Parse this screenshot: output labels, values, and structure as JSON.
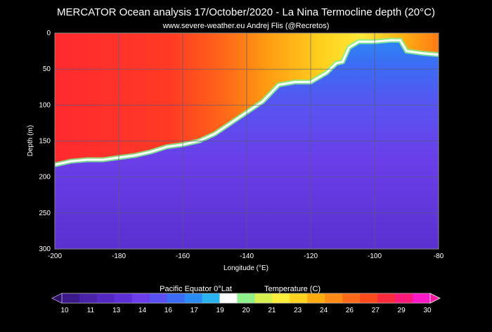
{
  "chart_data": {
    "type": "heatmap",
    "title": "MERCATOR Ocean analysis  17/October/2020 - La Nina   Termocline depth (20°C)",
    "subtitle": "www.severe-weather.eu   Andrej Flis (@Recretos)",
    "xlabel": "Longitude (°E)",
    "ylabel": "Depth (m)",
    "xlim": [
      -200,
      -80
    ],
    "ylim": [
      300,
      0
    ],
    "x_ticks": [
      "-200",
      "-180",
      "-160",
      "-140",
      "-120",
      "-100",
      "-80"
    ],
    "y_ticks": [
      "0",
      "50",
      "100",
      "150",
      "200",
      "250",
      "300"
    ],
    "grid": true,
    "isotherm_20C_depth": {
      "longitude": [
        -200,
        -195,
        -190,
        -185,
        -180,
        -175,
        -170,
        -165,
        -160,
        -155,
        -150,
        -145,
        -140,
        -135,
        -130,
        -125,
        -120,
        -115,
        -112,
        -110,
        -108,
        -105,
        -100,
        -95,
        -92,
        -90,
        -85,
        -80
      ],
      "depth": [
        183,
        178,
        176,
        176,
        173,
        170,
        165,
        158,
        155,
        150,
        140,
        125,
        110,
        95,
        72,
        68,
        68,
        55,
        42,
        40,
        20,
        12,
        12,
        10,
        10,
        25,
        28,
        30
      ]
    },
    "colorbar": {
      "label_left": "Pacific Equator 0°Lat",
      "label_right": "Temperature (C)",
      "ticks": [
        "10",
        "11",
        "13",
        "14",
        "16",
        "17",
        "19",
        "20",
        "21",
        "23",
        "24",
        "26",
        "27",
        "29",
        "30"
      ],
      "colors": [
        "#3c1a8c",
        "#4a22a8",
        "#5528c4",
        "#5f30d8",
        "#6a3ee8",
        "#5a52f0",
        "#3c6cf4",
        "#2a8cf4",
        "#29b4f0",
        "#ffffff",
        "#8ff08a",
        "#d8f050",
        "#ffef3a",
        "#ffd21e",
        "#ffaa10",
        "#ff8a14",
        "#ff6a18",
        "#ff4a1e",
        "#ff2a3c",
        "#ff1a7a",
        "#ff18c8"
      ]
    }
  }
}
